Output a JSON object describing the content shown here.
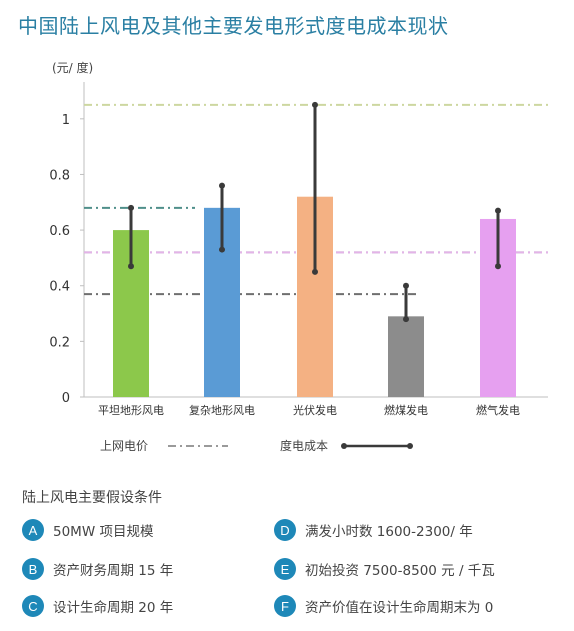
{
  "title": "中国陆上风电及其他主要发电形式度电成本现状",
  "chart_data": {
    "type": "bar",
    "ylabel": "(元/ 度)",
    "ylim": [
      0,
      1.1
    ],
    "yticks": [
      "0",
      "0.2",
      "0.4",
      "0.6",
      "0.8",
      "1"
    ],
    "categories": [
      "平坦地形风电",
      "复杂地形风电",
      "光伏发电",
      "燃煤发电",
      "燃气发电"
    ],
    "series": [
      {
        "name": "度电成本",
        "values": [
          0.6,
          0.68,
          0.72,
          0.29,
          0.64
        ],
        "range_low": [
          0.47,
          0.53,
          0.45,
          0.28,
          0.47
        ],
        "range_high": [
          0.68,
          0.76,
          1.05,
          0.4,
          0.67
        ],
        "colors": [
          "#8cc84b",
          "#5a9bd5",
          "#f4b183",
          "#8c8c8c",
          "#e6a0f0"
        ]
      }
    ],
    "reference_lines": {
      "name": "上网电价",
      "values": [
        1.05,
        0.68,
        0.52,
        0.37,
        0.52
      ],
      "colors": [
        "#cdd7a0",
        "#4f8f8a",
        "#a9c2b8",
        "#6f6f6f",
        "#e4b3e8"
      ]
    },
    "legend": {
      "grid_price": "上网电价",
      "cost": "度电成本"
    }
  },
  "assumptions": {
    "title": "陆上风电主要假设条件",
    "items": [
      {
        "letter": "A",
        "text": "50MW 项目规模"
      },
      {
        "letter": "B",
        "text": "资产财务周期 15 年"
      },
      {
        "letter": "C",
        "text": "设计生命周期 20 年"
      },
      {
        "letter": "D",
        "text": "满发小时数 1600-2300/ 年"
      },
      {
        "letter": "E",
        "text": "初始投资  7500-8500 元 / 千瓦"
      },
      {
        "letter": "F",
        "text": "资产价值在设计生命周期末为 0"
      }
    ]
  },
  "colors": {
    "accent": "#1e88b8",
    "title": "#2a7fa3"
  }
}
